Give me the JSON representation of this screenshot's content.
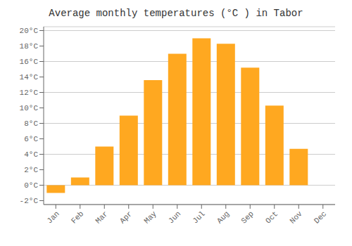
{
  "chart_data": {
    "type": "bar",
    "title": "Average monthly temperatures (°C ) in Tabor",
    "categories": [
      "Jan",
      "Feb",
      "Mar",
      "Apr",
      "May",
      "Jun",
      "Jul",
      "Aug",
      "Sep",
      "Oct",
      "Nov",
      "Dec"
    ],
    "values": [
      -1.0,
      1.0,
      5.0,
      9.0,
      13.6,
      17.0,
      19.0,
      18.3,
      15.2,
      10.3,
      4.7,
      0.0
    ],
    "color": "#FFA820",
    "ylim": [
      -2.5,
      20.5
    ],
    "yticks": [
      {
        "value": -2,
        "label": "-2°C"
      },
      {
        "value": 0,
        "label": "0°C"
      },
      {
        "value": 2,
        "label": "2°C"
      },
      {
        "value": 4,
        "label": "4°C"
      },
      {
        "value": 6,
        "label": "6°C"
      },
      {
        "value": 8,
        "label": "8°C"
      },
      {
        "value": 10,
        "label": "10°C"
      },
      {
        "value": 12,
        "label": "12°C"
      },
      {
        "value": 14,
        "label": "14°C"
      },
      {
        "value": 16,
        "label": "16°C"
      },
      {
        "value": 18,
        "label": "18°C"
      },
      {
        "value": 20,
        "label": "20°C"
      }
    ],
    "grid": true
  }
}
